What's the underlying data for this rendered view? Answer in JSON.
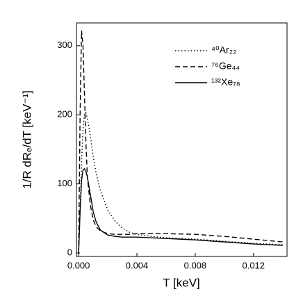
{
  "chart_data": {
    "type": "line",
    "x_label": "T [keV]",
    "y_label": "1/R dRₑ/dT [keV⁻¹]",
    "x": [
      0,
      0.0001,
      0.0002,
      0.0003,
      0.0004,
      0.0005,
      0.0006,
      0.0008,
      0.001,
      0.0012,
      0.0015,
      0.002,
      0.0025,
      0.003,
      0.0035,
      0.004,
      0.005,
      0.006,
      0.008,
      0.01,
      0.012,
      0.014
    ],
    "series": [
      {
        "name": "⁴⁰Ar₂₂",
        "color": "#000000",
        "dash": "dotted",
        "values": [
          0,
          60,
          130,
          180,
          200,
          203,
          195,
          170,
          140,
          115,
          90,
          62,
          46,
          36,
          30,
          27,
          24,
          22,
          20,
          17,
          14,
          12
        ]
      },
      {
        "name": "⁷⁶Ge₄₄",
        "color": "#000000",
        "dash": "dashed",
        "values": [
          0,
          200,
          322,
          300,
          230,
          160,
          110,
          70,
          48,
          38,
          32,
          28,
          27,
          27,
          27,
          28,
          28,
          28,
          27,
          24,
          20,
          16
        ]
      },
      {
        "name": "¹³²Xe₇₈",
        "color": "#000000",
        "dash": "solid",
        "values": [
          0,
          60,
          105,
          120,
          122,
          118,
          110,
          85,
          60,
          45,
          33,
          26,
          24,
          23,
          23,
          23,
          22,
          21,
          19,
          16,
          13,
          11
        ]
      }
    ],
    "xlim": [
      -0.00015,
      0.0143
    ],
    "ylim": [
      -5,
      333
    ],
    "xticks": [
      {
        "value": 0,
        "label": "0.000"
      },
      {
        "value": 0.004,
        "label": "0.004"
      },
      {
        "value": 0.008,
        "label": "0.008"
      },
      {
        "value": 0.012,
        "label": "0.012"
      }
    ],
    "yticks": [
      0,
      100,
      200,
      300
    ],
    "legend": "upper right",
    "grid": false
  }
}
